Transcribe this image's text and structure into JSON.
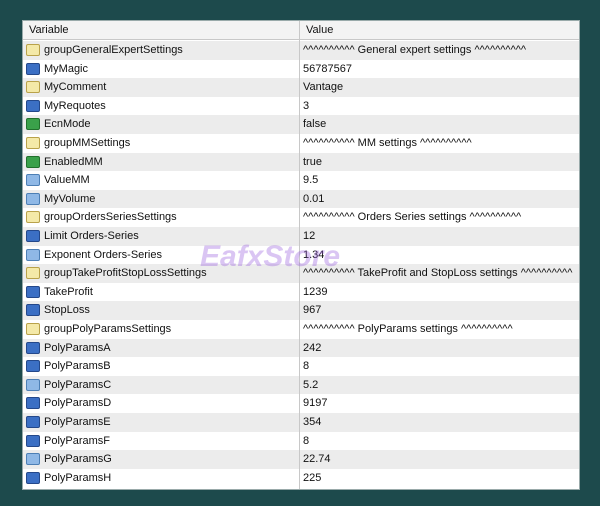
{
  "header": {
    "variable": "Variable",
    "value": "Value"
  },
  "watermark": "EafxStore",
  "rows": [
    {
      "type": "string",
      "variable": "groupGeneralExpertSettings",
      "value": "^^^^^^^^^^ General expert settings ^^^^^^^^^^"
    },
    {
      "type": "int",
      "variable": "MyMagic",
      "value": "56787567"
    },
    {
      "type": "string",
      "variable": "MyComment",
      "value": "Vantage"
    },
    {
      "type": "int",
      "variable": "MyRequotes",
      "value": "3"
    },
    {
      "type": "bool",
      "variable": "EcnMode",
      "value": "false"
    },
    {
      "type": "string",
      "variable": "groupMMSettings",
      "value": "^^^^^^^^^^ MM settings ^^^^^^^^^^"
    },
    {
      "type": "bool",
      "variable": "EnabledMM",
      "value": "true"
    },
    {
      "type": "double",
      "variable": "ValueMM",
      "value": "9.5"
    },
    {
      "type": "double",
      "variable": "MyVolume",
      "value": "0.01"
    },
    {
      "type": "string",
      "variable": "groupOrdersSeriesSettings",
      "value": "^^^^^^^^^^ Orders Series settings ^^^^^^^^^^"
    },
    {
      "type": "int",
      "variable": "Limit Orders-Series",
      "value": "12"
    },
    {
      "type": "double",
      "variable": "Exponent Orders-Series",
      "value": "1.34"
    },
    {
      "type": "string",
      "variable": "groupTakeProfitStopLossSettings",
      "value": "^^^^^^^^^^ TakeProfit and StopLoss settings ^^^^^^^^^^"
    },
    {
      "type": "int",
      "variable": "TakeProfit",
      "value": "1239"
    },
    {
      "type": "int",
      "variable": "StopLoss",
      "value": "967"
    },
    {
      "type": "string",
      "variable": "groupPolyParamsSettings",
      "value": "^^^^^^^^^^ PolyParams settings ^^^^^^^^^^"
    },
    {
      "type": "int",
      "variable": "PolyParamsA",
      "value": "242"
    },
    {
      "type": "int",
      "variable": "PolyParamsB",
      "value": "8"
    },
    {
      "type": "double",
      "variable": "PolyParamsC",
      "value": "5.2"
    },
    {
      "type": "int",
      "variable": "PolyParamsD",
      "value": "9197"
    },
    {
      "type": "int",
      "variable": "PolyParamsE",
      "value": "354"
    },
    {
      "type": "int",
      "variable": "PolyParamsF",
      "value": "8"
    },
    {
      "type": "double",
      "variable": "PolyParamsG",
      "value": "22.74"
    },
    {
      "type": "int",
      "variable": "PolyParamsH",
      "value": "225"
    }
  ]
}
